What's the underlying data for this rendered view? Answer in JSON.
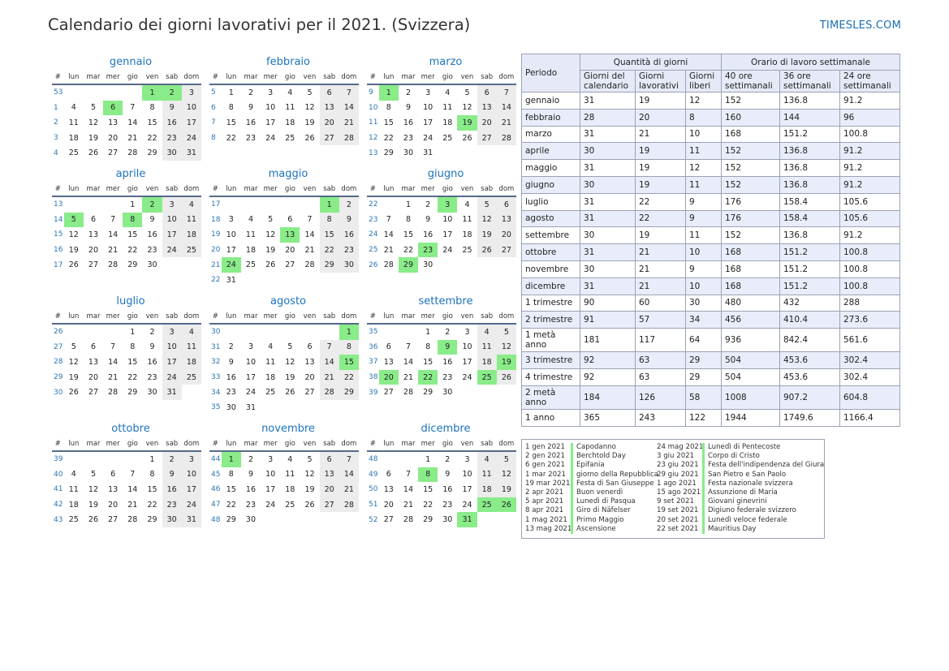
{
  "header": {
    "title": "Calendario dei giorni lavorativi per il 2021. (Svizzera)",
    "site": "TIMESLES.COM"
  },
  "weekday_header": [
    "#",
    "lun",
    "mar",
    "mer",
    "gio",
    "ven",
    "sab",
    "dom"
  ],
  "months": [
    {
      "name": "gennaio",
      "offset": 4,
      "days": 31,
      "weeks": [
        53,
        1,
        2,
        3,
        4
      ],
      "holidays": [
        1,
        2,
        6
      ]
    },
    {
      "name": "febbraio",
      "offset": 0,
      "days": 28,
      "weeks": [
        5,
        6,
        7,
        8
      ],
      "holidays": []
    },
    {
      "name": "marzo",
      "offset": 0,
      "days": 31,
      "weeks": [
        9,
        10,
        11,
        12,
        13
      ],
      "holidays": [
        1,
        19
      ]
    },
    {
      "name": "aprile",
      "offset": 3,
      "days": 30,
      "weeks": [
        13,
        14,
        15,
        16,
        17
      ],
      "holidays": [
        2,
        5,
        8
      ]
    },
    {
      "name": "maggio",
      "offset": 5,
      "days": 31,
      "weeks": [
        17,
        18,
        19,
        20,
        21,
        22
      ],
      "holidays": [
        1,
        13,
        24
      ]
    },
    {
      "name": "giugno",
      "offset": 1,
      "days": 30,
      "weeks": [
        22,
        23,
        24,
        25,
        26
      ],
      "holidays": [
        3,
        23,
        29
      ]
    },
    {
      "name": "luglio",
      "offset": 3,
      "days": 31,
      "weeks": [
        26,
        27,
        28,
        29,
        30
      ],
      "holidays": []
    },
    {
      "name": "agosto",
      "offset": 6,
      "days": 31,
      "weeks": [
        30,
        31,
        32,
        33,
        34,
        35
      ],
      "holidays": [
        1,
        15
      ]
    },
    {
      "name": "settembre",
      "offset": 2,
      "days": 30,
      "weeks": [
        35,
        36,
        37,
        38,
        39
      ],
      "holidays": [
        9,
        19,
        20,
        22,
        25
      ]
    },
    {
      "name": "ottobre",
      "offset": 4,
      "days": 31,
      "weeks": [
        39,
        40,
        41,
        42,
        43
      ],
      "holidays": []
    },
    {
      "name": "novembre",
      "offset": 0,
      "days": 30,
      "weeks": [
        44,
        45,
        46,
        47,
        48
      ],
      "holidays": [
        1
      ]
    },
    {
      "name": "dicembre",
      "offset": 2,
      "days": 31,
      "weeks": [
        48,
        49,
        50,
        51,
        52
      ],
      "holidays": [
        8,
        25,
        26,
        31
      ]
    }
  ],
  "stats": {
    "header_periodo": "Periodo",
    "header_quantita": "Quantità di giorni",
    "header_orario": "Orario di lavoro settimanale",
    "sub_headers": [
      "Giorni del calendario",
      "Giorni lavorativi",
      "Giorni liberi",
      "40 ore settimanali",
      "36 ore settimanali",
      "24 ore settimanali"
    ],
    "rows": [
      {
        "period": "gennaio",
        "cal": "31",
        "work": "19",
        "free": "12",
        "h40": "152",
        "h36": "136.8",
        "h24": "91.2"
      },
      {
        "period": "febbraio",
        "cal": "28",
        "work": "20",
        "free": "8",
        "h40": "160",
        "h36": "144",
        "h24": "96"
      },
      {
        "period": "marzo",
        "cal": "31",
        "work": "21",
        "free": "10",
        "h40": "168",
        "h36": "151.2",
        "h24": "100.8"
      },
      {
        "period": "aprile",
        "cal": "30",
        "work": "19",
        "free": "11",
        "h40": "152",
        "h36": "136.8",
        "h24": "91.2"
      },
      {
        "period": "maggio",
        "cal": "31",
        "work": "19",
        "free": "12",
        "h40": "152",
        "h36": "136.8",
        "h24": "91.2"
      },
      {
        "period": "giugno",
        "cal": "30",
        "work": "19",
        "free": "11",
        "h40": "152",
        "h36": "136.8",
        "h24": "91.2"
      },
      {
        "period": "luglio",
        "cal": "31",
        "work": "22",
        "free": "9",
        "h40": "176",
        "h36": "158.4",
        "h24": "105.6"
      },
      {
        "period": "agosto",
        "cal": "31",
        "work": "22",
        "free": "9",
        "h40": "176",
        "h36": "158.4",
        "h24": "105.6"
      },
      {
        "period": "settembre",
        "cal": "30",
        "work": "19",
        "free": "11",
        "h40": "152",
        "h36": "136.8",
        "h24": "91.2"
      },
      {
        "period": "ottobre",
        "cal": "31",
        "work": "21",
        "free": "10",
        "h40": "168",
        "h36": "151.2",
        "h24": "100.8"
      },
      {
        "period": "novembre",
        "cal": "30",
        "work": "21",
        "free": "9",
        "h40": "168",
        "h36": "151.2",
        "h24": "100.8"
      },
      {
        "period": "dicembre",
        "cal": "31",
        "work": "21",
        "free": "10",
        "h40": "168",
        "h36": "151.2",
        "h24": "100.8"
      },
      {
        "period": "1 trimestre",
        "cal": "90",
        "work": "60",
        "free": "30",
        "h40": "480",
        "h36": "432",
        "h24": "288"
      },
      {
        "period": "2 trimestre",
        "cal": "91",
        "work": "57",
        "free": "34",
        "h40": "456",
        "h36": "410.4",
        "h24": "273.6"
      },
      {
        "period": "1 metà anno",
        "cal": "181",
        "work": "117",
        "free": "64",
        "h40": "936",
        "h36": "842.4",
        "h24": "561.6"
      },
      {
        "period": "3 trimestre",
        "cal": "92",
        "work": "63",
        "free": "29",
        "h40": "504",
        "h36": "453.6",
        "h24": "302.4"
      },
      {
        "period": "4 trimestre",
        "cal": "92",
        "work": "63",
        "free": "29",
        "h40": "504",
        "h36": "453.6",
        "h24": "302.4"
      },
      {
        "period": "2 metà anno",
        "cal": "184",
        "work": "126",
        "free": "58",
        "h40": "1008",
        "h36": "907.2",
        "h24": "604.8"
      },
      {
        "period": "1 anno",
        "cal": "365",
        "work": "243",
        "free": "122",
        "h40": "1944",
        "h36": "1749.6",
        "h24": "1166.4"
      }
    ]
  },
  "holidays": [
    {
      "date": "1 gen 2021",
      "name": "Capodanno"
    },
    {
      "date": "2 gen 2021",
      "name": "Berchtold Day"
    },
    {
      "date": "6 gen 2021",
      "name": "Epifania"
    },
    {
      "date": "1 mar 2021",
      "name": "giorno della Repubblica"
    },
    {
      "date": "19 mar 2021",
      "name": "Festa di San Giuseppe"
    },
    {
      "date": "2 apr 2021",
      "name": "Buon venerdì"
    },
    {
      "date": "5 apr 2021",
      "name": "Lunedì di Pasqua"
    },
    {
      "date": "8 apr 2021",
      "name": "Giro di Näfelser"
    },
    {
      "date": "1 mag 2021",
      "name": "Primo Maggio"
    },
    {
      "date": "13 mag 2021",
      "name": "Ascensione"
    },
    {
      "date": "24 mag 2021",
      "name": "Lunedì di Pentecoste"
    },
    {
      "date": "3 giu 2021",
      "name": "Corpo di Cristo"
    },
    {
      "date": "23 giu 2021",
      "name": "Festa dell'indipendenza del Giura"
    },
    {
      "date": "29 giu 2021",
      "name": "San Pietro e San Paolo"
    },
    {
      "date": "1 ago 2021",
      "name": "Festa nazionale svizzera"
    },
    {
      "date": "15 ago 2021",
      "name": "Assunzione di Maria"
    },
    {
      "date": "9 set 2021",
      "name": "Giovani ginevrini"
    },
    {
      "date": "19 set 2021",
      "name": "Digiuno federale svizzero"
    },
    {
      "date": "20 set 2021",
      "name": "Lunedì veloce federale"
    },
    {
      "date": "22 set 2021",
      "name": "Mauritius Day"
    }
  ]
}
